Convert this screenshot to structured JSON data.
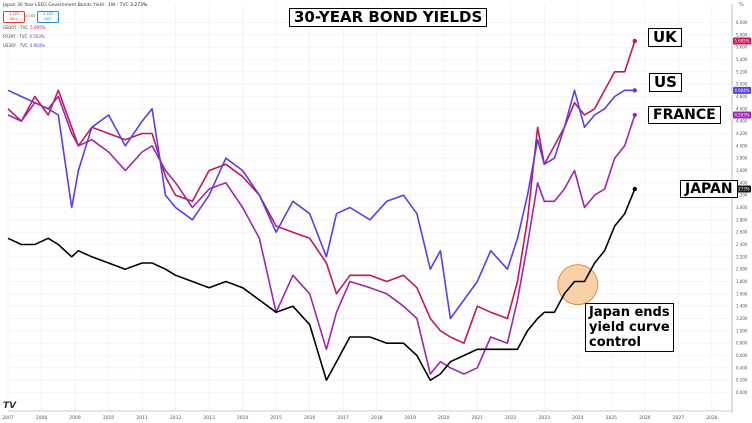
{
  "header": {
    "symbol_title": "Japan 30 Year LSEG Government Bonds Yield · 1W · TVC",
    "last_value": "3.273%",
    "sell_price": "3.183",
    "sell_label": "SELL",
    "buy_price": "3.183",
    "buy_label": "BUY",
    "spread": "0.000"
  },
  "legend": [
    {
      "name": "GB30Y · TVC",
      "value": "5.695%",
      "color": "#c2185b"
    },
    {
      "name": "FR30Y · TVC",
      "value": "4.503%",
      "color": "#9c27b0"
    },
    {
      "name": "US30Y · TVC",
      "value": "4.904%",
      "color": "#5b3fe0"
    }
  ],
  "title": "30-YEAR BOND YIELDS",
  "labels": {
    "uk": "UK",
    "us": "US",
    "france": "FRANCE",
    "japan": "JAPAN",
    "annotation": [
      "Japan ends",
      "yield curve",
      "control"
    ]
  },
  "watermark": "TV",
  "price_scale_unit": "%",
  "colors": {
    "uk": "#c2185b",
    "us": "#5b3fe0",
    "france": "#9c27b0",
    "japan": "#000000",
    "highlight": "#f7c08a"
  },
  "chart_data": {
    "type": "line",
    "title": "30-YEAR BOND YIELDS",
    "xlabel": "",
    "ylabel": "",
    "xlim": [
      2007,
      2028.6
    ],
    "ylim": [
      -0.3,
      6.3
    ],
    "x_ticks": [
      "2007",
      "2008",
      "2009",
      "2010",
      "2011",
      "2012",
      "2013",
      "2014",
      "2015",
      "2016",
      "2017",
      "2018",
      "2019",
      "2020",
      "2021",
      "2022",
      "2023",
      "2024",
      "2025",
      "2026",
      "2027",
      "2028"
    ],
    "y_ticks": [
      "0.000",
      "0.200",
      "0.400",
      "0.600",
      "0.800",
      "1.000",
      "1.200",
      "1.400",
      "1.600",
      "1.800",
      "2.000",
      "2.200",
      "2.400",
      "2.600",
      "2.800",
      "3.000",
      "3.200",
      "3.400",
      "3.600",
      "3.800",
      "4.000",
      "4.200",
      "4.400",
      "4.600",
      "4.800",
      "5.000",
      "5.200",
      "5.400",
      "5.600",
      "5.800",
      "6.000"
    ],
    "grid": true,
    "price_tags": [
      {
        "series": "UK",
        "value": "5.695%"
      },
      {
        "series": "US",
        "value": "4.904%"
      },
      {
        "series": "FRANCE",
        "value": "4.503%"
      },
      {
        "series": "JAPAN",
        "value": "3.273%"
      }
    ],
    "annotation": {
      "text": "Japan ends yield curve control",
      "x": 2024.0,
      "y": 1.75
    },
    "series": [
      {
        "name": "UK",
        "color": "#c2185b",
        "x": [
          2007.0,
          2007.4,
          2007.8,
          2008.2,
          2008.5,
          2008.9,
          2009.1,
          2009.5,
          2010.0,
          2010.5,
          2011.0,
          2011.3,
          2011.7,
          2012.0,
          2012.5,
          2013.0,
          2013.5,
          2014.0,
          2014.5,
          2015.0,
          2015.5,
          2016.0,
          2016.5,
          2016.8,
          2017.2,
          2017.8,
          2018.3,
          2018.8,
          2019.2,
          2019.6,
          2019.9,
          2020.2,
          2020.6,
          2021.0,
          2021.4,
          2021.9,
          2022.2,
          2022.5,
          2022.8,
          2023.0,
          2023.3,
          2023.6,
          2023.9,
          2024.2,
          2024.5,
          2024.8,
          2025.1,
          2025.4,
          2025.7
        ],
        "values": [
          4.6,
          4.4,
          4.8,
          4.5,
          4.9,
          4.3,
          4.0,
          4.3,
          4.2,
          4.1,
          4.2,
          4.2,
          3.5,
          3.2,
          3.1,
          3.6,
          3.7,
          3.5,
          3.2,
          2.7,
          2.6,
          2.5,
          2.1,
          1.6,
          1.9,
          1.9,
          1.8,
          1.9,
          1.7,
          1.2,
          1.0,
          0.9,
          0.8,
          1.4,
          1.3,
          1.2,
          1.8,
          2.8,
          4.3,
          3.7,
          4.0,
          4.3,
          4.7,
          4.5,
          4.6,
          4.9,
          5.2,
          5.2,
          5.7
        ]
      },
      {
        "name": "US",
        "color": "#5b3fe0",
        "x": [
          2007.0,
          2007.4,
          2007.8,
          2008.2,
          2008.5,
          2008.9,
          2009.1,
          2009.5,
          2010.0,
          2010.5,
          2011.0,
          2011.3,
          2011.7,
          2012.0,
          2012.5,
          2013.0,
          2013.5,
          2014.0,
          2014.5,
          2015.0,
          2015.5,
          2016.0,
          2016.5,
          2016.8,
          2017.2,
          2017.8,
          2018.3,
          2018.8,
          2019.2,
          2019.6,
          2019.9,
          2020.2,
          2020.6,
          2021.0,
          2021.4,
          2021.9,
          2022.2,
          2022.5,
          2022.8,
          2023.0,
          2023.3,
          2023.6,
          2023.9,
          2024.2,
          2024.5,
          2024.8,
          2025.1,
          2025.4,
          2025.7
        ],
        "values": [
          4.9,
          4.8,
          4.7,
          4.6,
          4.5,
          3.0,
          3.6,
          4.3,
          4.5,
          4.0,
          4.4,
          4.6,
          3.2,
          3.0,
          2.8,
          3.2,
          3.8,
          3.6,
          3.2,
          2.6,
          3.1,
          2.9,
          2.2,
          2.9,
          3.0,
          2.8,
          3.1,
          3.2,
          2.9,
          2.0,
          2.3,
          1.2,
          1.5,
          1.8,
          2.3,
          2.0,
          2.5,
          3.2,
          4.1,
          3.7,
          3.8,
          4.3,
          4.9,
          4.3,
          4.5,
          4.6,
          4.8,
          4.9,
          4.9
        ]
      },
      {
        "name": "FRANCE",
        "color": "#9c27b0",
        "x": [
          2007.0,
          2007.4,
          2007.8,
          2008.2,
          2008.5,
          2008.9,
          2009.1,
          2009.5,
          2010.0,
          2010.5,
          2011.0,
          2011.3,
          2011.7,
          2012.0,
          2012.5,
          2013.0,
          2013.5,
          2014.0,
          2014.5,
          2015.0,
          2015.5,
          2016.0,
          2016.5,
          2016.8,
          2017.2,
          2017.8,
          2018.3,
          2018.8,
          2019.2,
          2019.6,
          2019.9,
          2020.2,
          2020.6,
          2021.0,
          2021.4,
          2021.9,
          2022.2,
          2022.5,
          2022.8,
          2023.0,
          2023.3,
          2023.6,
          2023.9,
          2024.2,
          2024.5,
          2024.8,
          2025.1,
          2025.4,
          2025.7
        ],
        "values": [
          4.5,
          4.4,
          4.7,
          4.6,
          4.8,
          4.2,
          4.0,
          4.1,
          3.9,
          3.6,
          3.9,
          4.0,
          3.6,
          3.4,
          3.0,
          3.3,
          3.4,
          3.0,
          2.5,
          1.3,
          1.9,
          1.6,
          0.7,
          1.3,
          1.8,
          1.7,
          1.6,
          1.4,
          1.2,
          0.3,
          0.5,
          0.4,
          0.3,
          0.4,
          0.9,
          0.8,
          1.5,
          2.4,
          3.4,
          3.1,
          3.1,
          3.3,
          3.6,
          3.0,
          3.2,
          3.3,
          3.8,
          4.0,
          4.5
        ]
      },
      {
        "name": "JAPAN",
        "color": "#000000",
        "x": [
          2007.0,
          2007.4,
          2007.8,
          2008.2,
          2008.5,
          2008.9,
          2009.1,
          2009.5,
          2010.0,
          2010.5,
          2011.0,
          2011.3,
          2011.7,
          2012.0,
          2012.5,
          2013.0,
          2013.5,
          2014.0,
          2014.5,
          2015.0,
          2015.5,
          2016.0,
          2016.5,
          2016.8,
          2017.2,
          2017.8,
          2018.3,
          2018.8,
          2019.2,
          2019.6,
          2019.9,
          2020.2,
          2020.6,
          2021.0,
          2021.4,
          2021.9,
          2022.2,
          2022.5,
          2022.8,
          2023.0,
          2023.3,
          2023.6,
          2023.9,
          2024.2,
          2024.5,
          2024.8,
          2025.1,
          2025.4,
          2025.7
        ],
        "values": [
          2.5,
          2.4,
          2.4,
          2.5,
          2.4,
          2.2,
          2.3,
          2.2,
          2.1,
          2.0,
          2.1,
          2.1,
          2.0,
          1.9,
          1.8,
          1.7,
          1.8,
          1.7,
          1.5,
          1.3,
          1.4,
          1.1,
          0.2,
          0.5,
          0.9,
          0.9,
          0.8,
          0.8,
          0.6,
          0.2,
          0.3,
          0.5,
          0.6,
          0.7,
          0.7,
          0.7,
          0.7,
          1.0,
          1.2,
          1.3,
          1.3,
          1.6,
          1.8,
          1.8,
          2.1,
          2.3,
          2.7,
          2.9,
          3.3
        ]
      }
    ]
  }
}
